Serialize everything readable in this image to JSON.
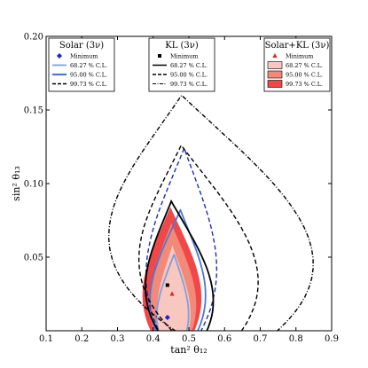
{
  "chart_data": {
    "type": "contour",
    "xlabel": "tan² θ₁₂",
    "ylabel": "sin² θ₁₃",
    "xlim": [
      0.1,
      0.9
    ],
    "ylim": [
      0.0,
      0.2
    ],
    "xticks": [
      "0.1",
      "0.2",
      "0.3",
      "0.4",
      "0.5",
      "0.6",
      "0.7",
      "0.8",
      "0.9"
    ],
    "yticks": [
      "0.05",
      "0.10",
      "0.15",
      "0.20"
    ],
    "ytick_values": [
      0.05,
      0.1,
      0.15,
      0.2
    ],
    "grid": false,
    "legends": [
      {
        "title": "Solar (3ν)",
        "placement": "top-left",
        "entries": [
          "Minimum",
          "68.27 % C.L.",
          "95.00 % C.L.",
          "99.73 % C.L."
        ]
      },
      {
        "title": "KL (3ν)",
        "placement": "top-center",
        "entries": [
          "Minimum",
          "68.27 % C.L.",
          "95.00 % C.L.",
          "99.73 % C.L."
        ]
      },
      {
        "title": "Solar+KL (3ν)",
        "placement": "top-right",
        "entries": [
          "Minimum",
          "68.27 % C.L.",
          "95.00 % C.L.",
          "99.73 % C.L."
        ]
      }
    ],
    "colors": {
      "solar_minimum": "#1f1fd6",
      "solar_68": "#7f9fe0",
      "solar_95": "#4a78d8",
      "solar_99": "#000000",
      "kl": "#000000",
      "kl_95": "#000000",
      "combined_68": "#f8c8c0",
      "combined_95": "#f28a7a",
      "combined_99": "#f04848",
      "combined_minimum": "#e02020",
      "solar_95_dashed": "#1a2fb0"
    },
    "minima": {
      "solar": {
        "x": 0.44,
        "y": 0.009
      },
      "kl": {
        "x": 0.44,
        "y": 0.031
      },
      "combined": {
        "x": 0.453,
        "y": 0.025
      }
    },
    "series": [
      {
        "label": "Solar+KL 99.73 % C.L.",
        "kind": "filled",
        "color_key": "combined_99",
        "contour": {
          "cx": 0.452,
          "bottom": 0.0,
          "top": 0.084,
          "width": 0.175,
          "tilt": 0.04
        }
      },
      {
        "label": "Solar+KL 95.00 % C.L.",
        "kind": "filled",
        "color_key": "combined_95",
        "contour": {
          "cx": 0.454,
          "bottom": 0.0,
          "top": 0.073,
          "width": 0.14,
          "tilt": 0.04
        }
      },
      {
        "label": "Solar+KL 68.27 % C.L.",
        "kind": "filled",
        "color_key": "combined_68",
        "contour": {
          "cx": 0.457,
          "bottom": 0.0,
          "top": 0.058,
          "width": 0.1,
          "tilt": 0.05
        }
      },
      {
        "label": "Solar 68.27 % C.L.",
        "kind": "line",
        "dash": "solid",
        "color_key": "solar_68",
        "contour": {
          "cx": 0.455,
          "bottom": 0.0,
          "top": 0.052,
          "width": 0.095,
          "tilt": -0.06
        }
      },
      {
        "label": "Solar 95.00 % C.L.",
        "kind": "line",
        "dash": "solid",
        "color_key": "solar_95",
        "contour": {
          "cx": 0.47,
          "bottom": 0.0,
          "top": 0.082,
          "width": 0.165,
          "tilt": -0.07
        }
      },
      {
        "label": "Solar 99.73 % C.L.",
        "kind": "line",
        "dash": "dashed",
        "color_key": "solar_95_dashed",
        "contour": {
          "cx": 0.48,
          "bottom": 0.0,
          "top": 0.124,
          "width": 0.21,
          "tilt": -0.05
        }
      },
      {
        "label": "KL 68.27 % C.L.",
        "kind": "line",
        "dash": "solid",
        "color_key": "kl",
        "contour": {
          "cx": 0.47,
          "bottom": 0.0,
          "top": 0.088,
          "width": 0.2,
          "tilt": 0.2
        }
      },
      {
        "label": "KL 95.00 % C.L.",
        "kind": "line",
        "dash": "dashed",
        "color_key": "kl",
        "contour": {
          "cx": 0.52,
          "bottom": 0.0,
          "top": 0.126,
          "width": 0.35,
          "tilt": 0.3
        }
      },
      {
        "label": "KL 99.73 % C.L.",
        "kind": "line",
        "dash": "dashdot",
        "color_key": "kl",
        "contour": {
          "cx": 0.55,
          "bottom": 0.0,
          "top": 0.16,
          "width": 0.6,
          "tilt": 0.4
        }
      }
    ]
  }
}
